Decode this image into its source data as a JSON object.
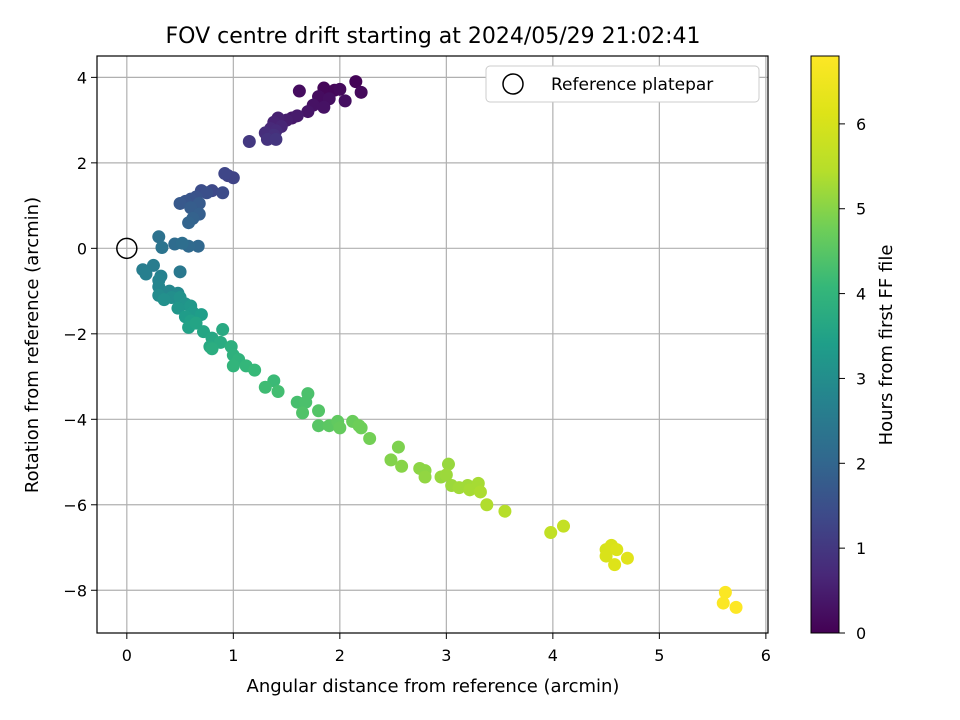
{
  "chart_data": {
    "type": "scatter",
    "title": "FOV centre drift starting at 2024/05/29 21:02:41",
    "xlabel": "Angular distance from reference (arcmin)",
    "ylabel": "Rotation from reference (arcmin)",
    "xlim": [
      -0.28,
      6.02
    ],
    "ylim": [
      -9.0,
      4.5
    ],
    "xticks": [
      0,
      1,
      2,
      3,
      4,
      5,
      6
    ],
    "yticks": [
      -8,
      -6,
      -4,
      -2,
      0,
      2,
      4
    ],
    "grid": true,
    "legend": {
      "position": "top-right",
      "entries": [
        "Reference platepar"
      ]
    },
    "reference_point": {
      "x": 0,
      "y": 0
    },
    "colorbar": {
      "label": "Hours from first FF file",
      "range": [
        0,
        6.8
      ],
      "ticks": [
        0,
        1,
        2,
        3,
        4,
        5,
        6
      ],
      "colormap": "viridis"
    },
    "series": [
      {
        "points": [
          [
            2.15,
            3.9,
            0.05
          ],
          [
            1.85,
            3.75,
            0.1
          ],
          [
            1.95,
            3.7,
            0.1
          ],
          [
            2.0,
            3.72,
            0.15
          ],
          [
            2.2,
            3.65,
            0.15
          ],
          [
            1.8,
            3.55,
            0.2
          ],
          [
            1.62,
            3.68,
            0.2
          ],
          [
            2.05,
            3.45,
            0.25
          ],
          [
            1.9,
            3.5,
            0.25
          ],
          [
            1.75,
            3.35,
            0.3
          ],
          [
            1.85,
            3.3,
            0.3
          ],
          [
            1.7,
            3.2,
            0.35
          ],
          [
            1.55,
            3.05,
            0.4
          ],
          [
            1.6,
            3.1,
            0.45
          ],
          [
            1.5,
            3.0,
            0.5
          ],
          [
            1.42,
            3.05,
            0.55
          ],
          [
            1.38,
            2.95,
            0.6
          ],
          [
            1.45,
            2.85,
            0.65
          ],
          [
            1.35,
            2.8,
            0.7
          ],
          [
            1.4,
            2.75,
            0.75
          ],
          [
            1.3,
            2.7,
            0.8
          ],
          [
            1.38,
            2.65,
            0.85
          ],
          [
            1.32,
            2.55,
            0.9
          ],
          [
            1.4,
            2.55,
            0.95
          ],
          [
            1.15,
            2.5,
            1.0
          ],
          [
            0.95,
            1.7,
            1.2
          ],
          [
            1.0,
            1.65,
            1.25
          ],
          [
            0.92,
            1.75,
            1.3
          ],
          [
            0.8,
            1.35,
            1.35
          ],
          [
            0.9,
            1.3,
            1.4
          ],
          [
            0.7,
            1.35,
            1.45
          ],
          [
            0.75,
            1.3,
            1.5
          ],
          [
            0.65,
            1.2,
            1.55
          ],
          [
            0.6,
            1.15,
            1.6
          ],
          [
            0.55,
            1.1,
            1.65
          ],
          [
            0.5,
            1.05,
            1.7
          ],
          [
            0.68,
            1.05,
            1.75
          ],
          [
            0.6,
            0.95,
            1.8
          ],
          [
            0.68,
            0.8,
            1.85
          ],
          [
            0.62,
            0.7,
            1.9
          ],
          [
            0.58,
            0.6,
            1.95
          ],
          [
            0.67,
            0.05,
            2.05
          ],
          [
            0.58,
            0.05,
            2.1
          ],
          [
            0.45,
            0.1,
            2.15
          ],
          [
            0.52,
            0.12,
            2.2
          ],
          [
            0.3,
            0.27,
            2.3
          ],
          [
            0.33,
            0.02,
            2.35
          ],
          [
            0.5,
            -0.55,
            2.45
          ],
          [
            0.25,
            -0.4,
            2.55
          ],
          [
            0.15,
            -0.5,
            2.6
          ],
          [
            0.18,
            -0.6,
            2.65
          ],
          [
            0.32,
            -0.65,
            2.7
          ],
          [
            0.3,
            -0.75,
            2.75
          ],
          [
            0.3,
            -0.9,
            2.8
          ],
          [
            0.4,
            -1.0,
            2.85
          ],
          [
            0.48,
            -1.05,
            2.9
          ],
          [
            0.3,
            -1.1,
            2.95
          ],
          [
            0.42,
            -1.15,
            3.0
          ],
          [
            0.35,
            -1.2,
            3.05
          ],
          [
            0.5,
            -1.15,
            3.1
          ],
          [
            0.55,
            -1.3,
            3.15
          ],
          [
            0.48,
            -1.4,
            3.2
          ],
          [
            0.6,
            -1.35,
            3.25
          ],
          [
            0.62,
            -1.5,
            3.3
          ],
          [
            0.55,
            -1.6,
            3.35
          ],
          [
            0.7,
            -1.55,
            3.4
          ],
          [
            0.6,
            -1.7,
            3.45
          ],
          [
            0.58,
            -1.85,
            3.5
          ],
          [
            0.65,
            -1.75,
            3.55
          ],
          [
            0.72,
            -1.95,
            3.6
          ],
          [
            0.8,
            -2.1,
            3.65
          ],
          [
            0.78,
            -2.3,
            3.7
          ],
          [
            0.9,
            -1.9,
            3.7
          ],
          [
            0.88,
            -2.2,
            3.75
          ],
          [
            0.8,
            -2.35,
            3.8
          ],
          [
            0.98,
            -2.3,
            3.85
          ],
          [
            1.0,
            -2.5,
            3.9
          ],
          [
            1.05,
            -2.6,
            3.95
          ],
          [
            1.0,
            -2.75,
            4.0
          ],
          [
            1.12,
            -2.75,
            4.05
          ],
          [
            1.2,
            -2.85,
            4.1
          ],
          [
            1.38,
            -3.1,
            4.15
          ],
          [
            1.3,
            -3.25,
            4.2
          ],
          [
            1.42,
            -3.35,
            4.25
          ],
          [
            1.6,
            -3.6,
            4.3
          ],
          [
            1.68,
            -3.6,
            4.35
          ],
          [
            1.7,
            -3.4,
            4.35
          ],
          [
            1.65,
            -3.85,
            4.4
          ],
          [
            1.8,
            -3.8,
            4.45
          ],
          [
            1.8,
            -4.15,
            4.5
          ],
          [
            1.9,
            -4.15,
            4.55
          ],
          [
            1.98,
            -4.05,
            4.6
          ],
          [
            2.0,
            -4.2,
            4.65
          ],
          [
            2.12,
            -4.05,
            4.7
          ],
          [
            2.18,
            -4.15,
            4.75
          ],
          [
            2.2,
            -4.2,
            4.75
          ],
          [
            2.28,
            -4.45,
            4.8
          ],
          [
            2.55,
            -4.65,
            4.9
          ],
          [
            2.48,
            -4.95,
            4.95
          ],
          [
            2.58,
            -5.1,
            5.0
          ],
          [
            2.75,
            -5.15,
            5.05
          ],
          [
            2.8,
            -5.2,
            5.05
          ],
          [
            2.8,
            -5.35,
            5.1
          ],
          [
            2.95,
            -5.35,
            5.15
          ],
          [
            3.02,
            -5.05,
            5.15
          ],
          [
            3.0,
            -5.3,
            5.2
          ],
          [
            3.05,
            -5.55,
            5.2
          ],
          [
            3.12,
            -5.6,
            5.25
          ],
          [
            3.2,
            -5.55,
            5.25
          ],
          [
            3.22,
            -5.65,
            5.3
          ],
          [
            3.3,
            -5.5,
            5.3
          ],
          [
            3.32,
            -5.7,
            5.35
          ],
          [
            3.38,
            -6.0,
            5.4
          ],
          [
            3.55,
            -6.15,
            5.45
          ],
          [
            3.98,
            -6.65,
            5.65
          ],
          [
            4.1,
            -6.5,
            5.7
          ],
          [
            4.5,
            -7.05,
            6.0
          ],
          [
            4.55,
            -6.95,
            6.05
          ],
          [
            4.5,
            -7.2,
            6.05
          ],
          [
            4.6,
            -7.05,
            6.1
          ],
          [
            4.58,
            -7.4,
            6.15
          ],
          [
            4.7,
            -7.25,
            6.2
          ],
          [
            5.62,
            -8.05,
            6.75
          ],
          [
            5.6,
            -8.3,
            6.75
          ],
          [
            5.72,
            -8.4,
            6.8
          ]
        ]
      }
    ]
  }
}
